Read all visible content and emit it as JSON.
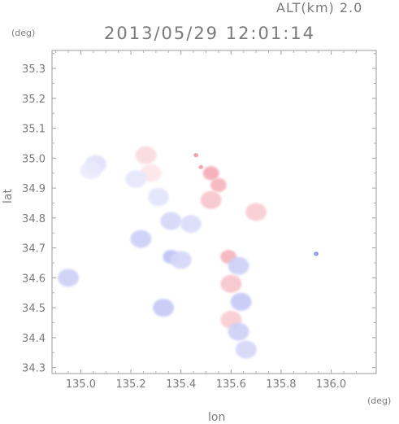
{
  "header": {
    "altitude_label": "ALT(km)  2.0",
    "timestamp": "2013/05/29 12:01:14"
  },
  "axes": {
    "x_label": "lon",
    "y_label": "lat",
    "x_unit": "(deg)",
    "y_unit": "(deg)",
    "x_ticks": [
      "135.0",
      "135.2",
      "135.4",
      "135.6",
      "135.8",
      "136.0"
    ],
    "y_ticks": [
      "34.3",
      "34.4",
      "34.5",
      "34.6",
      "34.7",
      "34.8",
      "34.9",
      "35.0",
      "35.1",
      "35.2",
      "35.3"
    ]
  },
  "chart_data": {
    "type": "heatmap",
    "xlim": [
      134.885,
      136.18
    ],
    "ylim": [
      34.28,
      35.36
    ],
    "x_tick_values": [
      135.0,
      135.2,
      135.4,
      135.6,
      135.8,
      136.0
    ],
    "y_tick_values": [
      34.3,
      34.4,
      34.5,
      34.6,
      34.7,
      34.8,
      34.9,
      35.0,
      35.1,
      35.2,
      35.3
    ],
    "colormap": {
      "positive": "#e8556a",
      "negative": "#6f78e8",
      "zero": "#ffffff"
    },
    "grid": false,
    "cells": [
      {
        "lon": 135.48,
        "lat": 34.97,
        "value": 0.55
      },
      {
        "lon": 135.46,
        "lat": 35.01,
        "value": 0.6
      },
      {
        "lon": 135.52,
        "lat": 34.95,
        "value": 0.5
      },
      {
        "lon": 135.55,
        "lat": 34.91,
        "value": 0.45
      },
      {
        "lon": 135.52,
        "lat": 34.86,
        "value": 0.35
      },
      {
        "lon": 135.26,
        "lat": 35.01,
        "value": 0.22
      },
      {
        "lon": 135.28,
        "lat": 34.95,
        "value": 0.15
      },
      {
        "lon": 135.22,
        "lat": 34.93,
        "value": -0.18
      },
      {
        "lon": 135.06,
        "lat": 34.98,
        "value": -0.22
      },
      {
        "lon": 135.04,
        "lat": 34.96,
        "value": -0.15
      },
      {
        "lon": 135.36,
        "lat": 34.79,
        "value": -0.3
      },
      {
        "lon": 135.44,
        "lat": 34.78,
        "value": -0.25
      },
      {
        "lon": 135.31,
        "lat": 34.87,
        "value": -0.2
      },
      {
        "lon": 135.24,
        "lat": 34.73,
        "value": -0.35
      },
      {
        "lon": 135.36,
        "lat": 34.67,
        "value": -0.45
      },
      {
        "lon": 135.4,
        "lat": 34.66,
        "value": -0.3
      },
      {
        "lon": 134.95,
        "lat": 34.6,
        "value": -0.35
      },
      {
        "lon": 135.33,
        "lat": 34.5,
        "value": -0.4
      },
      {
        "lon": 135.59,
        "lat": 34.67,
        "value": 0.45
      },
      {
        "lon": 135.63,
        "lat": 34.64,
        "value": -0.35
      },
      {
        "lon": 135.6,
        "lat": 34.58,
        "value": 0.35
      },
      {
        "lon": 135.64,
        "lat": 34.52,
        "value": -0.4
      },
      {
        "lon": 135.6,
        "lat": 34.46,
        "value": 0.3
      },
      {
        "lon": 135.63,
        "lat": 34.42,
        "value": -0.35
      },
      {
        "lon": 135.66,
        "lat": 34.36,
        "value": -0.3
      },
      {
        "lon": 135.94,
        "lat": 34.68,
        "value": -0.8
      },
      {
        "lon": 135.7,
        "lat": 34.82,
        "value": 0.3
      }
    ]
  }
}
